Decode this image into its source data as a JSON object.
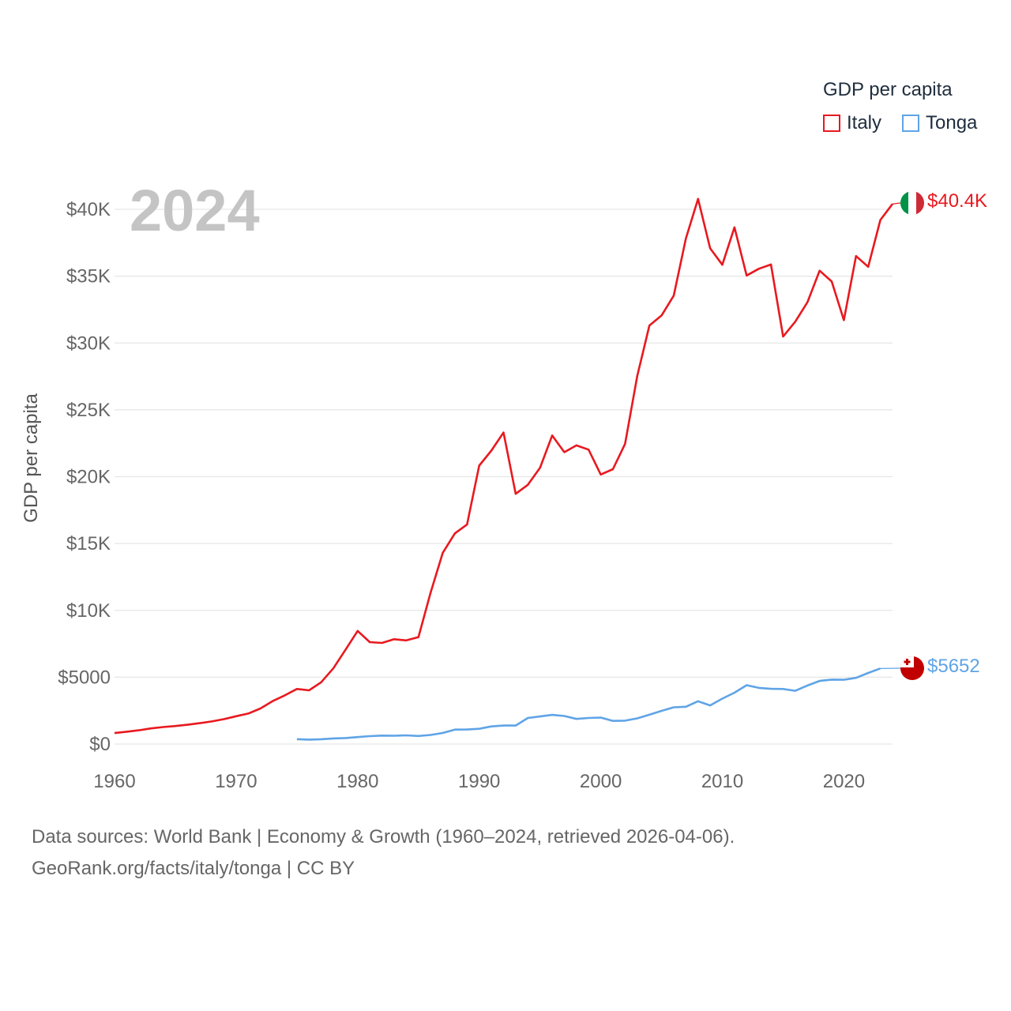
{
  "colors": {
    "italy": "#e8191f",
    "tonga": "#5fa4e6",
    "grid": "#e6e6e6",
    "axis_text": "#666666"
  },
  "legend": {
    "title": "GDP per capita",
    "items": [
      {
        "label": "Italy"
      },
      {
        "label": "Tonga"
      }
    ]
  },
  "year_label": "2024",
  "chart_data": {
    "type": "line",
    "title": "GDP per capita",
    "xlabel": "",
    "ylabel": "GDP per capita",
    "xlim": [
      1960,
      2024
    ],
    "ylim": [
      0,
      40000
    ],
    "x_ticks": [
      {
        "value": 1960,
        "label": "1960"
      },
      {
        "value": 1970,
        "label": "1970"
      },
      {
        "value": 1980,
        "label": "1980"
      },
      {
        "value": 1990,
        "label": "1990"
      },
      {
        "value": 2000,
        "label": "2000"
      },
      {
        "value": 2010,
        "label": "2010"
      },
      {
        "value": 2020,
        "label": "2020"
      }
    ],
    "y_ticks": [
      {
        "value": 0,
        "label": "$0"
      },
      {
        "value": 5000,
        "label": "$5000"
      },
      {
        "value": 10000,
        "label": "$10K"
      },
      {
        "value": 15000,
        "label": "$15K"
      },
      {
        "value": 20000,
        "label": "$20K"
      },
      {
        "value": 25000,
        "label": "$25K"
      },
      {
        "value": 30000,
        "label": "$30K"
      },
      {
        "value": 35000,
        "label": "$35K"
      },
      {
        "value": 40000,
        "label": "$40K"
      }
    ],
    "series": [
      {
        "name": "Italy",
        "end_label": "$40.4K",
        "x_start": 1960,
        "values": [
          820,
          920,
          1030,
          1170,
          1270,
          1350,
          1440,
          1560,
          1690,
          1860,
          2080,
          2280,
          2660,
          3210,
          3640,
          4120,
          4020,
          4620,
          5660,
          7050,
          8460,
          7620,
          7560,
          7840,
          7750,
          8000,
          11330,
          14290,
          15760,
          16420,
          20830,
          21950,
          23300,
          18720,
          19390,
          20660,
          23080,
          21830,
          22340,
          22020,
          20160,
          20560,
          22460,
          27530,
          31310,
          32060,
          33540,
          37820,
          40780,
          37080,
          35850,
          38650,
          35050,
          35550,
          35870,
          30480,
          31600,
          33050,
          35410,
          34600,
          31710,
          36500,
          35700,
          39200,
          40400
        ]
      },
      {
        "name": "Tonga",
        "end_label": "$5652",
        "x_start": 1975,
        "values": [
          360,
          330,
          360,
          420,
          450,
          520,
          590,
          630,
          620,
          650,
          600,
          680,
          830,
          1080,
          1090,
          1140,
          1320,
          1380,
          1380,
          1950,
          2060,
          2180,
          2100,
          1880,
          1950,
          1980,
          1730,
          1750,
          1920,
          2190,
          2480,
          2750,
          2790,
          3200,
          2890,
          3400,
          3840,
          4400,
          4200,
          4130,
          4120,
          3980,
          4380,
          4720,
          4820,
          4810,
          4950,
          5320,
          5652
        ]
      }
    ]
  },
  "axis": {
    "ylabel": "GDP per capita"
  },
  "end_labels": {
    "italy": "$40.4K",
    "tonga": "$5652"
  },
  "source": {
    "line1": "Data sources: World Bank | Economy & Growth (1960–2024, retrieved 2026-04-06).",
    "line2": "GeoRank.org/facts/italy/tonga | CC BY"
  }
}
